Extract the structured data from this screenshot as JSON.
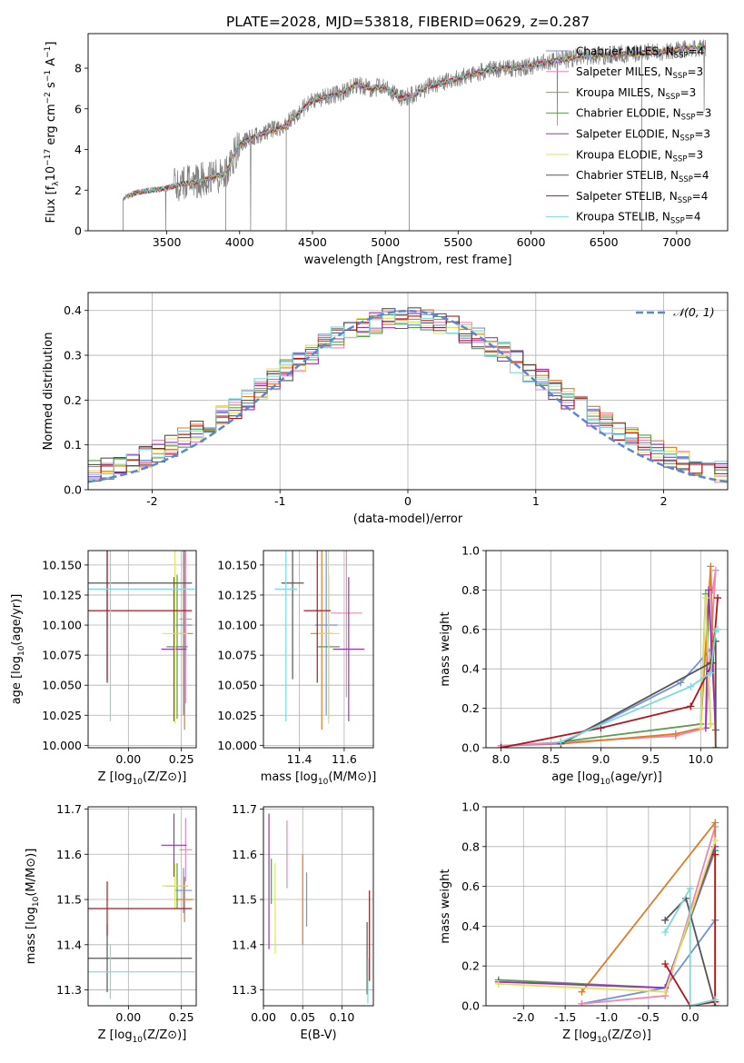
{
  "figure": {
    "title": "PLATE=2028, MJD=53818, FIBERID=0629, z=0.287"
  },
  "colors": {
    "Chabrier MILES": "#6f93dc",
    "Salpeter MILES": "#ef87b5",
    "Kroupa MILES": "#e07b2a",
    "Chabrier ELODIE": "#5a9e4c",
    "Salpeter ELODIE": "#9b30c4",
    "Kroupa ELODIE": "#dfe35a",
    "Chabrier STELIB": "#555555",
    "Salpeter STELIB": "#b0161c",
    "Kroupa STELIB": "#7fd9dc",
    "data": "#808080",
    "normal": "#5b86d6",
    "grid": "#b0b0b0"
  },
  "chart_data": [
    {
      "id": "spectrum",
      "type": "line",
      "xlabel": "wavelength [Angstrom, rest frame]",
      "ylabel": "Flux [f",
      "xlim": [
        2960,
        7350
      ],
      "ylim": [
        0,
        9.7
      ],
      "xticks": [
        3500,
        4000,
        4500,
        5000,
        5500,
        6000,
        6500,
        7000
      ],
      "yticks": [
        0,
        2,
        4,
        6,
        8
      ],
      "grid": false,
      "legend_position": "top-right",
      "legend": [
        {
          "name": "Chabrier MILES",
          "nssp": "4"
        },
        {
          "name": "Salpeter MILES",
          "nssp": "3"
        },
        {
          "name": "Kroupa MILES",
          "nssp": "3"
        },
        {
          "name": "Chabrier ELODIE",
          "nssp": "3"
        },
        {
          "name": "Salpeter ELODIE",
          "nssp": "3"
        },
        {
          "name": "Kroupa ELODIE",
          "nssp": "3"
        },
        {
          "name": "Chabrier STELIB",
          "nssp": "4"
        },
        {
          "name": "Salpeter STELIB",
          "nssp": "4"
        },
        {
          "name": "Kroupa STELIB",
          "nssp": "4"
        }
      ],
      "continuum": {
        "x": [
          3200,
          3300,
          3400,
          3500,
          3600,
          3700,
          3800,
          3900,
          4000,
          4100,
          4200,
          4300,
          4400,
          4500,
          4600,
          4700,
          4800,
          4900,
          5000,
          5100,
          5200,
          5300,
          5400,
          5500,
          5600,
          5700,
          5800,
          5900,
          6000,
          6100,
          6200,
          6300,
          6400,
          6500,
          6600,
          6700,
          6800,
          6900,
          7000,
          7100,
          7200
        ],
        "y": [
          1.6,
          1.9,
          2.0,
          2.1,
          2.3,
          2.4,
          2.6,
          2.8,
          4.3,
          4.6,
          4.9,
          5.1,
          5.8,
          6.4,
          6.6,
          6.8,
          7.2,
          7.0,
          7.1,
          6.5,
          6.7,
          7.1,
          7.3,
          7.5,
          7.7,
          7.9,
          8.0,
          8.0,
          8.1,
          8.3,
          8.4,
          8.5,
          8.6,
          8.6,
          8.7,
          8.7,
          8.8,
          8.8,
          8.9,
          9.0,
          9.0
        ]
      }
    },
    {
      "id": "residuals",
      "type": "bar",
      "xlabel": "(data-model)/error",
      "ylabel": "Normed distribution",
      "xlim": [
        -2.5,
        2.5
      ],
      "ylim": [
        0,
        0.44
      ],
      "xticks": [
        -2,
        -1,
        0,
        1,
        2
      ],
      "yticks": [
        0.0,
        0.1,
        0.2,
        0.3,
        0.4
      ],
      "grid": true,
      "legend_position": "top-right",
      "legend_label": "𝒩(0, 1)",
      "bin_width": 0.1
    },
    {
      "id": "age_vs_Z",
      "type": "scatter",
      "xlabel": "Z [log",
      "ylabel": "age  [log",
      "xlim": [
        -0.19,
        0.32
      ],
      "ylim": [
        9.998,
        10.162
      ],
      "xticks": [
        0.0,
        0.25
      ],
      "yticks": [
        10.0,
        10.025,
        10.05,
        10.075,
        10.1,
        10.125,
        10.15
      ],
      "grid": true,
      "points": [
        {
          "model": "Chabrier MILES",
          "x": 0.26,
          "xerr": 0.04,
          "y": 10.1,
          "yerr": 0.075
        },
        {
          "model": "Salpeter MILES",
          "x": 0.27,
          "xerr": 0.03,
          "y": 10.105,
          "yerr": 0.07
        },
        {
          "model": "Kroupa MILES",
          "x": 0.265,
          "xerr": 0.04,
          "y": 10.093,
          "yerr": 0.08
        },
        {
          "model": "Chabrier ELODIE",
          "x": 0.23,
          "xerr": 0.05,
          "y": 10.082,
          "yerr": 0.06
        },
        {
          "model": "Salpeter ELODIE",
          "x": 0.215,
          "xerr": 0.06,
          "y": 10.08,
          "yerr": 0.06
        },
        {
          "model": "Kroupa ELODIE",
          "x": 0.22,
          "xerr": 0.06,
          "y": 10.093,
          "yerr": 0.075
        },
        {
          "model": "Chabrier STELIB",
          "x": -0.1,
          "xerr": 0.4,
          "y": 10.135,
          "yerr": 0.08
        },
        {
          "model": "Salpeter STELIB",
          "x": -0.1,
          "xerr": 0.4,
          "y": 10.112,
          "yerr": 0.06
        },
        {
          "model": "Kroupa STELIB",
          "x": -0.085,
          "xerr": 0.4,
          "y": 10.13,
          "yerr": 0.11
        }
      ]
    },
    {
      "id": "age_vs_mass",
      "type": "scatter",
      "xlabel": "mass [log",
      "ylabel": "",
      "xlim": [
        11.24,
        11.73
      ],
      "ylim": [
        9.998,
        10.162
      ],
      "xticks": [
        11.4,
        11.6
      ],
      "yticks": [
        10.0,
        10.025,
        10.05,
        10.075,
        10.1,
        10.125,
        10.15
      ],
      "grid": true,
      "points": [
        {
          "model": "Chabrier MILES",
          "x": 11.52,
          "xerr": 0.05,
          "y": 10.1,
          "yerr": 0.075
        },
        {
          "model": "Salpeter MILES",
          "x": 11.61,
          "xerr": 0.07,
          "y": 10.11,
          "yerr": 0.07
        },
        {
          "model": "Kroupa MILES",
          "x": 11.5,
          "xerr": 0.05,
          "y": 10.093,
          "yerr": 0.08
        },
        {
          "model": "Chabrier ELODIE",
          "x": 11.53,
          "xerr": 0.05,
          "y": 10.082,
          "yerr": 0.06
        },
        {
          "model": "Salpeter ELODIE",
          "x": 11.62,
          "xerr": 0.07,
          "y": 10.08,
          "yerr": 0.06
        },
        {
          "model": "Kroupa ELODIE",
          "x": 11.53,
          "xerr": 0.05,
          "y": 10.093,
          "yerr": 0.075
        },
        {
          "model": "Chabrier STELIB",
          "x": 11.37,
          "xerr": 0.05,
          "y": 10.135,
          "yerr": 0.08
        },
        {
          "model": "Salpeter STELIB",
          "x": 11.48,
          "xerr": 0.06,
          "y": 10.112,
          "yerr": 0.06
        },
        {
          "model": "Kroupa STELIB",
          "x": 11.34,
          "xerr": 0.05,
          "y": 10.13,
          "yerr": 0.11
        }
      ]
    },
    {
      "id": "mass_vs_Z",
      "type": "scatter",
      "xlabel": "Z [log",
      "ylabel": "mass [log",
      "xlim": [
        -0.19,
        0.32
      ],
      "ylim": [
        11.265,
        11.705
      ],
      "xticks": [
        0.0,
        0.25
      ],
      "yticks": [
        11.3,
        11.4,
        11.5,
        11.6,
        11.7
      ],
      "grid": true,
      "points": [
        {
          "model": "Chabrier MILES",
          "x": 0.26,
          "xerr": 0.04,
          "y": 11.52,
          "yerr": 0.05
        },
        {
          "model": "Salpeter MILES",
          "x": 0.27,
          "xerr": 0.03,
          "y": 11.61,
          "yerr": 0.07
        },
        {
          "model": "Kroupa MILES",
          "x": 0.265,
          "xerr": 0.04,
          "y": 11.5,
          "yerr": 0.05
        },
        {
          "model": "Chabrier ELODIE",
          "x": 0.23,
          "xerr": 0.05,
          "y": 11.53,
          "yerr": 0.05
        },
        {
          "model": "Salpeter ELODIE",
          "x": 0.215,
          "xerr": 0.06,
          "y": 11.62,
          "yerr": 0.07
        },
        {
          "model": "Kroupa ELODIE",
          "x": 0.22,
          "xerr": 0.06,
          "y": 11.53,
          "yerr": 0.05
        },
        {
          "model": "Chabrier STELIB",
          "x": -0.1,
          "xerr": 0.4,
          "y": 11.37,
          "yerr": 0.075
        },
        {
          "model": "Salpeter STELIB",
          "x": -0.1,
          "xerr": 0.4,
          "y": 11.48,
          "yerr": 0.06
        },
        {
          "model": "Kroupa STELIB",
          "x": -0.085,
          "xerr": 0.4,
          "y": 11.34,
          "yerr": 0.06
        }
      ]
    },
    {
      "id": "mass_vs_ebv",
      "type": "scatter",
      "xlabel": "E(B-V)",
      "ylabel": "",
      "xlim": [
        0.0,
        0.14
      ],
      "ylim": [
        11.265,
        11.705
      ],
      "xticks": [
        0.0,
        0.05,
        0.1
      ],
      "yticks": [
        11.3,
        11.4,
        11.5,
        11.6,
        11.7
      ],
      "grid": true,
      "points": [
        {
          "model": "Chabrier MILES",
          "x": 0.055,
          "xerr": 0,
          "y": 11.5,
          "yerr": 0.06
        },
        {
          "model": "Salpeter MILES",
          "x": 0.03,
          "xerr": 0,
          "y": 11.6,
          "yerr": 0.075
        },
        {
          "model": "Kroupa MILES",
          "x": 0.05,
          "xerr": 0,
          "y": 11.5,
          "yerr": 0.1
        },
        {
          "model": "Chabrier ELODIE",
          "x": 0.01,
          "xerr": 0,
          "y": 11.54,
          "yerr": 0.05
        },
        {
          "model": "Salpeter ELODIE",
          "x": 0.007,
          "xerr": 0,
          "y": 11.54,
          "yerr": 0.15
        },
        {
          "model": "Kroupa ELODIE",
          "x": 0.015,
          "xerr": 0,
          "y": 11.48,
          "yerr": 0.1
        },
        {
          "model": "Chabrier STELIB",
          "x": 0.132,
          "xerr": 0,
          "y": 11.37,
          "yerr": 0.08
        },
        {
          "model": "Salpeter STELIB",
          "x": 0.135,
          "xerr": 0,
          "y": 11.42,
          "yerr": 0.1
        },
        {
          "model": "Kroupa STELIB",
          "x": 0.133,
          "xerr": 0,
          "y": 11.32,
          "yerr": 0.05
        }
      ]
    },
    {
      "id": "mass_weight_vs_age",
      "type": "line",
      "xlabel": "age  [log",
      "ylabel": "mass weight",
      "xlim": [
        7.85,
        10.27
      ],
      "ylim": [
        0.0,
        1.0
      ],
      "xticks": [
        8.0,
        8.5,
        9.0,
        9.5,
        10.0
      ],
      "yticks": [
        0.0,
        0.2,
        0.4,
        0.6,
        0.8,
        1.0
      ],
      "grid": true,
      "series": [
        {
          "model": "Chabrier MILES",
          "x": [
            8.0,
            8.6,
            9.8,
            10.1,
            10.15
          ],
          "y": [
            0.01,
            0.02,
            0.33,
            0.5,
            0.6
          ]
        },
        {
          "model": "Salpeter MILES",
          "x": [
            8.0,
            9.75,
            10.05,
            10.15,
            10.12
          ],
          "y": [
            0.01,
            0.06,
            0.1,
            0.9,
            0.8
          ]
        },
        {
          "model": "Kroupa MILES",
          "x": [
            8.6,
            9.75,
            10.0,
            10.1,
            10.15
          ],
          "y": [
            0.02,
            0.07,
            0.1,
            0.92,
            0.0
          ]
        },
        {
          "model": "Chabrier ELODIE",
          "x": [
            8.6,
            10.0,
            10.05,
            10.1
          ],
          "y": [
            0.03,
            0.12,
            0.78,
            0.12
          ]
        },
        {
          "model": "Salpeter ELODIE",
          "x": [
            10.05,
            10.08,
            10.15
          ],
          "y": [
            0.1,
            0.8,
            0.09
          ]
        },
        {
          "model": "Kroupa ELODIE",
          "x": [
            10.0,
            10.05,
            10.1
          ],
          "y": [
            0.1,
            0.76,
            0.12
          ]
        },
        {
          "model": "Chabrier STELIB",
          "x": [
            8.6,
            10.1,
            10.15,
            10.15
          ],
          "y": [
            0.02,
            0.43,
            0.54,
            0.0
          ]
        },
        {
          "model": "Salpeter STELIB",
          "x": [
            8.0,
            9.0,
            9.9,
            10.12,
            10.17
          ],
          "y": [
            0.0,
            0.1,
            0.21,
            0.43,
            0.76
          ]
        },
        {
          "model": "Kroupa STELIB",
          "x": [
            8.6,
            9.9,
            10.1,
            10.15,
            10.17
          ],
          "y": [
            0.03,
            0.31,
            0.38,
            0.59,
            0.6
          ]
        }
      ]
    },
    {
      "id": "mass_weight_vs_Z",
      "type": "line",
      "xlabel": "Z [log",
      "ylabel": "mass weight",
      "xlim": [
        -2.45,
        0.45
      ],
      "ylim": [
        0.0,
        1.0
      ],
      "xticks": [
        -2.0,
        -1.5,
        -1.0,
        -0.5,
        0.0
      ],
      "yticks": [
        0.0,
        0.2,
        0.4,
        0.6,
        0.8,
        1.0
      ],
      "grid": true,
      "series": [
        {
          "model": "Chabrier MILES",
          "x": [
            -1.3,
            -0.3,
            0.3
          ],
          "y": [
            0.01,
            0.09,
            0.43
          ]
        },
        {
          "model": "Salpeter MILES",
          "x": [
            -1.3,
            -0.3,
            0.3,
            0.3
          ],
          "y": [
            0.01,
            0.05,
            0.9,
            0.8
          ]
        },
        {
          "model": "Kroupa MILES",
          "x": [
            -1.3,
            0.3,
            0.3
          ],
          "y": [
            0.07,
            0.92,
            0.0
          ]
        },
        {
          "model": "Chabrier ELODIE",
          "x": [
            -2.3,
            -0.3,
            0.3
          ],
          "y": [
            0.13,
            0.09,
            0.78
          ]
        },
        {
          "model": "Salpeter ELODIE",
          "x": [
            -2.3,
            -0.3,
            0.3
          ],
          "y": [
            0.12,
            0.09,
            0.8
          ]
        },
        {
          "model": "Kroupa ELODIE",
          "x": [
            -2.3,
            -0.3,
            0.3
          ],
          "y": [
            0.11,
            0.07,
            0.83
          ]
        },
        {
          "model": "Chabrier STELIB",
          "x": [
            -0.3,
            -0.05,
            0.3,
            0.3
          ],
          "y": [
            0.43,
            0.54,
            0.0,
            0.02
          ]
        },
        {
          "model": "Salpeter STELIB",
          "x": [
            -0.3,
            0.0,
            0.3,
            0.3
          ],
          "y": [
            0.21,
            0.0,
            0.02,
            0.76
          ]
        },
        {
          "model": "Kroupa STELIB",
          "x": [
            -0.3,
            0.0,
            0.0,
            0.3
          ],
          "y": [
            0.37,
            0.59,
            0.0,
            0.03
          ]
        }
      ]
    }
  ]
}
